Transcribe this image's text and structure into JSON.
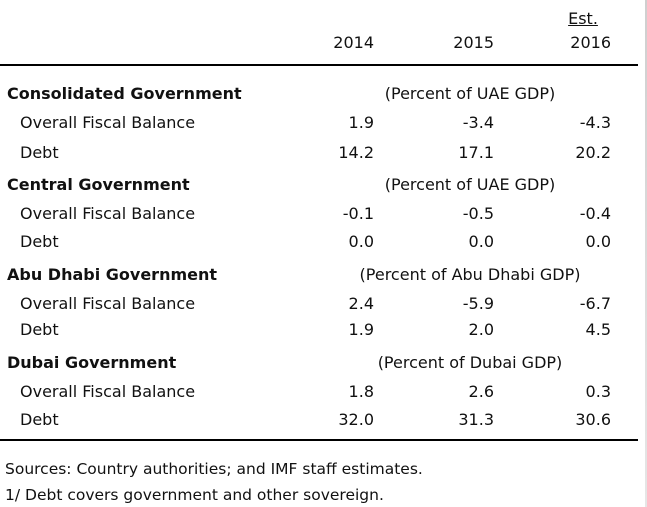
{
  "header": {
    "est_label": "Est.",
    "years": [
      "2014",
      "2015",
      "2016"
    ]
  },
  "sections": [
    {
      "title": "Consolidated Government",
      "unit": "(Percent of UAE GDP)",
      "rows": [
        {
          "label": "Overall Fiscal Balance",
          "values": [
            "1.9",
            "-3.4",
            "-4.3"
          ]
        },
        {
          "label": "Debt",
          "values": [
            "14.2",
            "17.1",
            "20.2"
          ]
        }
      ]
    },
    {
      "title": "Central Government",
      "unit": "(Percent of UAE GDP)",
      "rows": [
        {
          "label": "Overall Fiscal Balance",
          "values": [
            "-0.1",
            "-0.5",
            "-0.4"
          ]
        },
        {
          "label": "Debt",
          "values": [
            "0.0",
            "0.0",
            "0.0"
          ]
        }
      ]
    },
    {
      "title": "Abu Dhabi Government",
      "unit": "(Percent of Abu Dhabi GDP)",
      "rows": [
        {
          "label": "Overall Fiscal Balance",
          "values": [
            "2.4",
            "-5.9",
            "-6.7"
          ]
        },
        {
          "label": "Debt",
          "values": [
            "1.9",
            "2.0",
            "4.5"
          ]
        }
      ]
    },
    {
      "title": "Dubai Government",
      "unit": "(Percent of Dubai GDP)",
      "rows": [
        {
          "label": "Overall Fiscal Balance",
          "values": [
            "1.8",
            "2.6",
            "0.3"
          ]
        },
        {
          "label": "Debt",
          "values": [
            "32.0",
            "31.3",
            "30.6"
          ]
        }
      ]
    }
  ],
  "footnotes": [
    "Sources: Country authorities; and IMF staff estimates.",
    "1/ Debt covers government and other sovereign."
  ]
}
